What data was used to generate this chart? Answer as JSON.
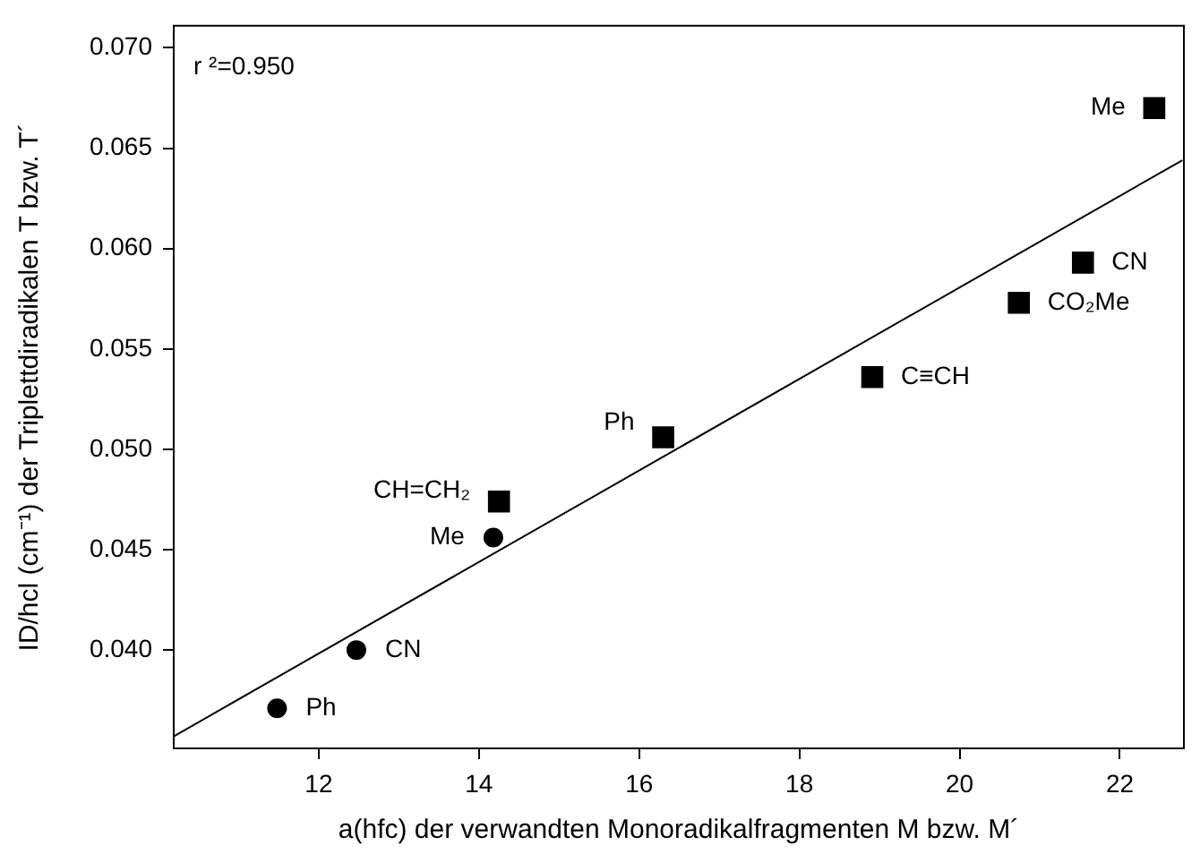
{
  "chart_data": {
    "type": "scatter",
    "xlabel": "a(hfc) der verwandten Monoradikalfragmenten M bzw. M´",
    "ylabel": "ID/hcl (cm⁻¹) der Triplettdiradikalen T bzw. T´",
    "xlim": [
      10.19,
      22.8
    ],
    "xticks": [
      12,
      14,
      16,
      18,
      20,
      22
    ],
    "ylim": [
      0.0351,
      0.0711
    ],
    "yticks": [
      {
        "value": 0.04,
        "label": "0.040"
      },
      {
        "value": 0.045,
        "label": "0.045"
      },
      {
        "value": 0.05,
        "label": "0.050"
      },
      {
        "value": 0.055,
        "label": "0.055"
      },
      {
        "value": 0.06,
        "label": "0.060"
      },
      {
        "value": 0.065,
        "label": "0.065"
      },
      {
        "value": 0.07,
        "label": "0.070"
      }
    ],
    "grid": false,
    "legend": false,
    "series": [
      {
        "marker": "circle",
        "color": "#000000",
        "x": [
          11.48,
          12.47,
          14.18
        ],
        "values": [
          0.0371,
          0.04,
          0.0456
        ]
      },
      {
        "marker": "square",
        "color": "#000000",
        "x": [
          14.25,
          16.3,
          18.91,
          20.74,
          21.54,
          22.43
        ],
        "values": [
          0.0474,
          0.0506,
          0.0536,
          0.0573,
          0.0593,
          0.067
        ]
      },
      {
        "type": "line",
        "marker": "none",
        "color": "#000000",
        "x": [
          10.19,
          22.78
        ],
        "values": [
          0.0357,
          0.0644
        ]
      }
    ],
    "annotations": [
      "r ²=0.950",
      {
        "text": "Ph",
        "x": 11.48,
        "y": 0.0371
      },
      {
        "text": "CN",
        "x": 12.47,
        "y": 0.04
      },
      {
        "text": "Me",
        "x": 14.18,
        "y": 0.0456
      },
      {
        "text": "CH=CH₂",
        "x": 14.25,
        "y": 0.0474
      },
      {
        "text": "Ph",
        "x": 16.3,
        "y": 0.0506
      },
      {
        "text": "C≡CH",
        "x": 18.91,
        "y": 0.0536
      },
      {
        "text": "CO₂Me",
        "x": 20.74,
        "y": 0.0573
      },
      {
        "text": "CN",
        "x": 21.54,
        "y": 0.0593
      },
      {
        "text": "Me",
        "x": 22.43,
        "y": 0.067
      }
    ]
  }
}
